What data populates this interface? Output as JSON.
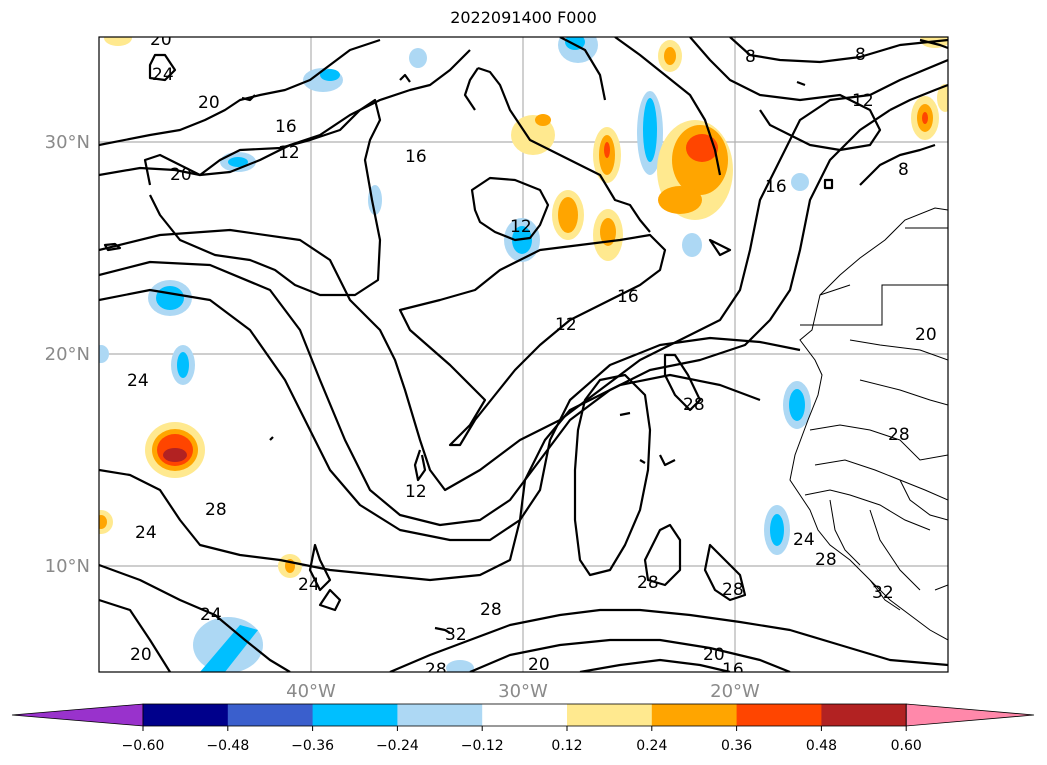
{
  "title": "2022091400 F000",
  "map": {
    "lat_labels": [
      "30°N",
      "20°N",
      "10°N"
    ],
    "lon_labels": [
      "40°W",
      "30°W",
      "20°W"
    ],
    "contour_labels": [
      "20",
      "24",
      "20",
      "16",
      "12",
      "20",
      "16",
      "12",
      "16",
      "8",
      "8",
      "12",
      "8",
      "16",
      "12",
      "24",
      "28",
      "24",
      "28",
      "24",
      "24",
      "20",
      "12",
      "28",
      "28",
      "28",
      "24",
      "28",
      "20",
      "28",
      "20",
      "16",
      "32",
      "28",
      "20",
      "32"
    ]
  },
  "colorbar": {
    "ticks": [
      "-0.60",
      "-0.48",
      "-0.36",
      "-0.24",
      "-0.12",
      "0.12",
      "0.24",
      "0.36",
      "0.48",
      "0.60"
    ],
    "colors": [
      "#9932cc",
      "#00008b",
      "#3a5fcd",
      "#00bfff",
      "#add8f4",
      "#ffffff",
      "#ffe98f",
      "#ffa500",
      "#ff4500",
      "#b22222",
      "#ff88aa"
    ]
  }
}
